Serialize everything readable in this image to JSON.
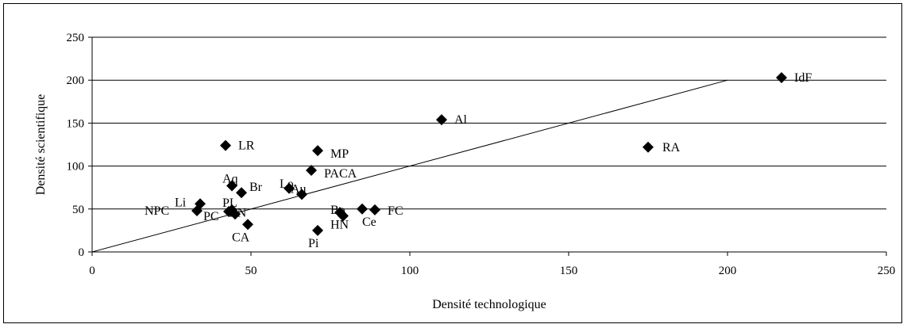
{
  "chart_data": {
    "type": "scatter",
    "title": "",
    "xlabel": "Densité technologique",
    "ylabel": "Densité scientifique",
    "xlim": [
      0,
      250
    ],
    "ylim": [
      0,
      250
    ],
    "x_ticks": [
      0,
      50,
      100,
      150,
      200,
      250
    ],
    "y_ticks": [
      0,
      50,
      100,
      150,
      200,
      250
    ],
    "grid": "horizontal",
    "legend": "none",
    "marker": "diamond",
    "marker_color": "#000000",
    "reference_line": {
      "x": [
        0,
        200
      ],
      "y": [
        0,
        200
      ]
    },
    "points": [
      {
        "label": "IdF",
        "x": 217,
        "y": 203
      },
      {
        "label": "Al",
        "x": 110,
        "y": 154
      },
      {
        "label": "RA",
        "x": 175,
        "y": 122
      },
      {
        "label": "LR",
        "x": 42,
        "y": 124
      },
      {
        "label": "MP",
        "x": 71,
        "y": 118
      },
      {
        "label": "PACA",
        "x": 69,
        "y": 95
      },
      {
        "label": "Aq",
        "x": 44,
        "y": 77
      },
      {
        "label": "Br",
        "x": 47,
        "y": 69
      },
      {
        "label": "Lo",
        "x": 62,
        "y": 74
      },
      {
        "label": "Au",
        "x": 66,
        "y": 67
      },
      {
        "label": "Li",
        "x": 34,
        "y": 56
      },
      {
        "label": "NPC",
        "x": 33,
        "y": 48
      },
      {
        "label": "PC",
        "x": 43,
        "y": 47
      },
      {
        "label": "PL",
        "x": 44,
        "y": 49
      },
      {
        "label": "BN",
        "x": 45,
        "y": 44
      },
      {
        "label": "CA",
        "x": 49,
        "y": 32
      },
      {
        "label": "Bo",
        "x": 78,
        "y": 46
      },
      {
        "label": "HN",
        "x": 79,
        "y": 42
      },
      {
        "label": "Pi",
        "x": 71,
        "y": 25
      },
      {
        "label": "Ce",
        "x": 85,
        "y": 50
      },
      {
        "label": "FC",
        "x": 89,
        "y": 49
      }
    ]
  }
}
